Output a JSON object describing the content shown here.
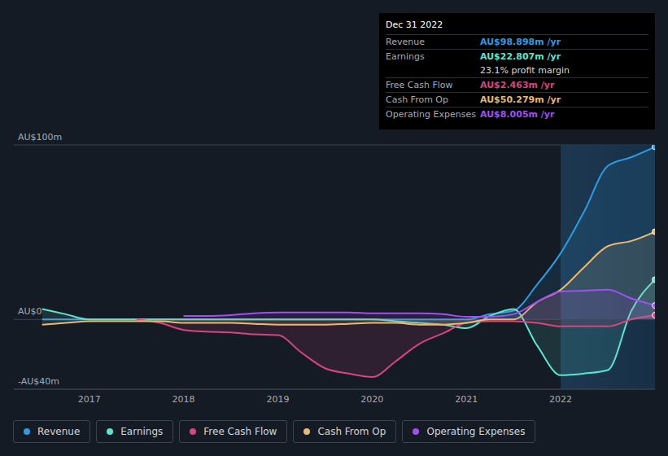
{
  "chart_data": {
    "type": "area",
    "x": [
      2016.5,
      2016.75,
      2017,
      2017.25,
      2017.5,
      2017.75,
      2018,
      2018.25,
      2018.5,
      2018.75,
      2019,
      2019.25,
      2019.5,
      2019.75,
      2020,
      2020.25,
      2020.5,
      2020.75,
      2021,
      2021.25,
      2021.5,
      2021.75,
      2022,
      2022.25,
      2022.5,
      2022.75,
      2023
    ],
    "series": [
      {
        "name": "Revenue",
        "color": "#2f9be3",
        "values": [
          0,
          0,
          0,
          0,
          0,
          0,
          0,
          0,
          0,
          0,
          0,
          0,
          0,
          0,
          0,
          0,
          0,
          0,
          0,
          3,
          5,
          20,
          38,
          62,
          88,
          93,
          98.898
        ]
      },
      {
        "name": "Earnings",
        "color": "#5fe3cf",
        "values": [
          6,
          3,
          0,
          0,
          0,
          0,
          0,
          0,
          0,
          0,
          0,
          0,
          0,
          0,
          0,
          -1,
          -2,
          -3,
          -5,
          2,
          6,
          -15,
          -32,
          -31,
          -29,
          5,
          22.807
        ]
      },
      {
        "name": "Free Cash Flow",
        "color": "#d5467f",
        "values": [
          null,
          null,
          null,
          null,
          0,
          -2,
          -6,
          -7,
          -7.5,
          -8.5,
          -9,
          -19,
          -28,
          -31,
          -33,
          -24,
          -14,
          -8,
          -2,
          -1,
          -1,
          -2,
          -4,
          -4,
          -4,
          0,
          2.463
        ]
      },
      {
        "name": "Cash From Op",
        "color": "#e9b872",
        "values": [
          -3,
          -2,
          -1,
          -1,
          -1,
          -1,
          -2,
          -2,
          -2,
          -2.5,
          -3,
          -3,
          -3,
          -2.5,
          -2,
          -2,
          -3,
          -3,
          -2,
          0,
          0,
          10,
          17,
          30,
          42,
          45,
          50.279
        ]
      },
      {
        "name": "Operating Expenses",
        "color": "#a34ff0",
        "values": [
          null,
          null,
          null,
          null,
          null,
          null,
          2,
          2,
          2.5,
          3.5,
          4,
          4,
          4,
          4,
          3.5,
          3.5,
          3.5,
          3,
          1.5,
          1.5,
          3,
          10,
          16,
          16.5,
          17,
          12,
          8.005
        ]
      }
    ],
    "xlim": [
      2016.2,
      2023
    ],
    "xticks": [
      2017,
      2018,
      2019,
      2020,
      2021,
      2022
    ],
    "ylim": [
      -40,
      100
    ],
    "yticks": [
      {
        "value": -40,
        "label": "-AU$40m"
      },
      {
        "value": 0,
        "label": "AU$0"
      },
      {
        "value": 100,
        "label": "AU$100m"
      }
    ],
    "grid": true,
    "legend": "bottom",
    "highlight": [
      2022,
      2023
    ],
    "info_box": {
      "title": "Dec 31 2022",
      "rows": [
        {
          "label": "Revenue",
          "value": "AU$98.898m /yr"
        },
        {
          "label": "Earnings",
          "value": "AU$22.807m /yr"
        },
        {
          "value": "23.1% profit margin"
        },
        {
          "label": "Free Cash Flow",
          "value": "AU$2.463m /yr"
        },
        {
          "label": "Cash From Op",
          "value": "AU$50.279m /yr"
        },
        {
          "label": "Operating Expenses",
          "value": "AU$8.005m /yr"
        }
      ]
    }
  }
}
